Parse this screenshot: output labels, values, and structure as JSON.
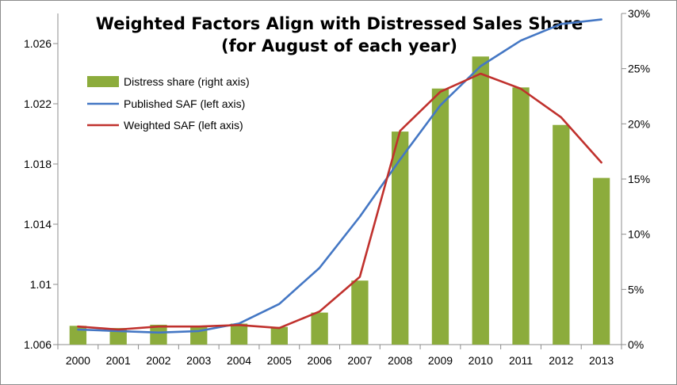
{
  "chart_data": {
    "type": "bar",
    "title_lines": [
      "Weighted Factors Align with Distressed Sales Share",
      "(for August of each year)"
    ],
    "categories": [
      "2000",
      "2001",
      "2002",
      "2003",
      "2004",
      "2005",
      "2006",
      "2007",
      "2008",
      "2009",
      "2010",
      "2011",
      "2012",
      "2013"
    ],
    "bar_series": {
      "name": "Distress share (right axis)",
      "axis": "right",
      "values": [
        1.7,
        1.5,
        1.8,
        1.6,
        1.9,
        1.6,
        2.9,
        5.8,
        19.3,
        23.2,
        26.1,
        23.3,
        19.9,
        15.1
      ],
      "color": "#8cac3c"
    },
    "line_series": [
      {
        "name": "Published SAF (left axis)",
        "axis": "left",
        "values": [
          1.007,
          1.0069,
          1.0068,
          1.0069,
          1.0074,
          1.0087,
          1.0111,
          1.0145,
          1.0183,
          1.0219,
          1.0245,
          1.0262,
          1.0273,
          1.0276
        ],
        "color": "#4477c4"
      },
      {
        "name": "Weighted SAF (left axis)",
        "axis": "left",
        "values": [
          1.0072,
          1.007,
          1.0072,
          1.0072,
          1.0073,
          1.0071,
          1.0082,
          1.0105,
          1.0202,
          1.0228,
          1.024,
          1.023,
          1.0211,
          1.0181
        ],
        "color": "#c0312d"
      }
    ],
    "left_axis": {
      "min": 1.006,
      "max": 1.028,
      "ticks": [
        "1.006",
        "1.01",
        "1.014",
        "1.018",
        "1.022",
        "1.026"
      ],
      "tick_values": [
        1.006,
        1.01,
        1.014,
        1.018,
        1.022,
        1.026
      ]
    },
    "right_axis": {
      "min": 0,
      "max": 30,
      "ticks": [
        "0%",
        "5%",
        "10%",
        "15%",
        "20%",
        "25%",
        "30%"
      ],
      "tick_values": [
        0,
        5,
        10,
        15,
        20,
        25,
        30
      ]
    },
    "grid": false,
    "legend_position": "top-left"
  }
}
